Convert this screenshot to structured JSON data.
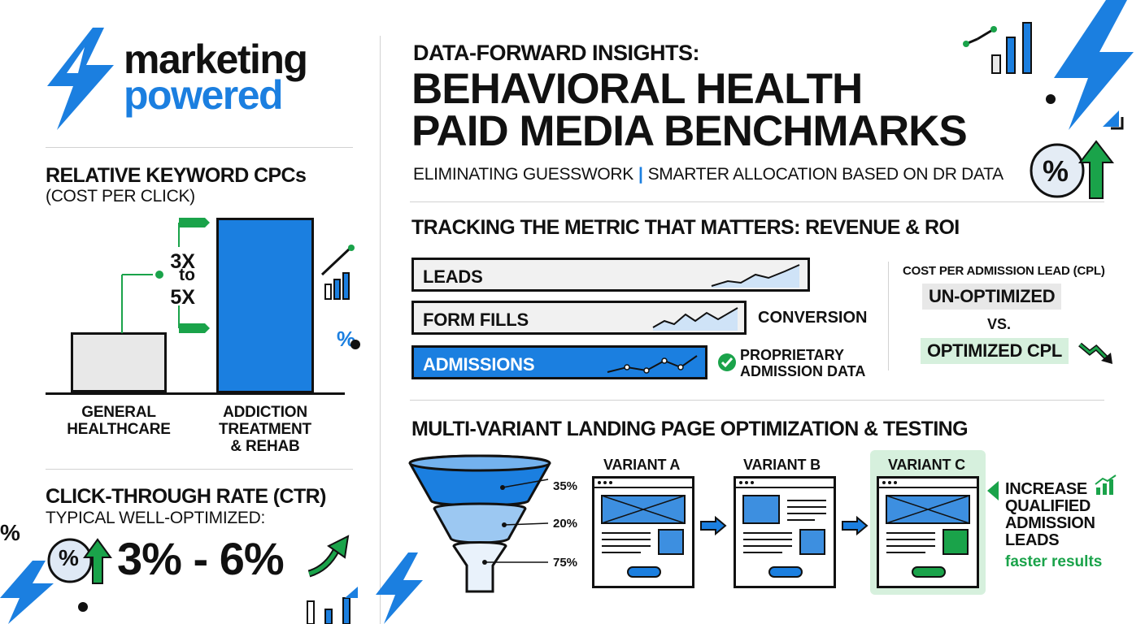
{
  "logo": {
    "line1": "marketing",
    "line2": "powered"
  },
  "header": {
    "kicker": "DATA-FORWARD INSIGHTS:",
    "title_line1": "BEHAVIORAL HEALTH",
    "title_line2": "PAID MEDIA BENCHMARKS",
    "subtitle_left": "ELIMINATING GUESSWORK",
    "subtitle_sep": "|",
    "subtitle_right": "SMARTER ALLOCATION BASED ON DR DATA",
    "percent_badge": "%"
  },
  "cpc": {
    "title": "RELATIVE KEYWORD CPCs",
    "subtitle": "(COST PER CLICK)",
    "multiplier_line1": "3X",
    "multiplier_line2": "to",
    "multiplier_line3": "5X",
    "percent_mark": "%",
    "chart_data": {
      "type": "bar",
      "categories": [
        "GENERAL HEALTHCARE",
        "ADDICTION TREATMENT & REHAB"
      ],
      "values": [
        1,
        3
      ],
      "label_general_line1": "GENERAL",
      "label_general_line2": "HEALTHCARE",
      "label_addiction_line1": "ADDICTION",
      "label_addiction_line2": "TREATMENT",
      "label_addiction_line3": "& REHAB"
    }
  },
  "ctr": {
    "title": "CLICK-THROUGH RATE (CTR)",
    "subtitle": "TYPICAL WELL-OPTIMIZED:",
    "range": "3% - 6%",
    "percent_badge": "%",
    "edge_percent": "%"
  },
  "tracking": {
    "title": "TRACKING THE METRIC THAT MATTERS: REVENUE & ROI",
    "stages": [
      {
        "label": "LEADS"
      },
      {
        "label": "FORM FILLS"
      },
      {
        "label": "ADMISSIONS"
      }
    ],
    "conversion_label": "CONVERSION",
    "proprietary_line1": "PROPRIETARY",
    "proprietary_line2": "ADMISSION DATA"
  },
  "cpl": {
    "title": "COST PER ADMISSION LEAD (CPL)",
    "unoptimized": "UN-OPTIMIZED",
    "vs": "VS.",
    "optimized": "OPTIMIZED CPL"
  },
  "testing": {
    "title": "MULTI-VARIANT LANDING PAGE OPTIMIZATION & TESTING",
    "funnel_pcts": [
      "35%",
      "20%",
      "75%"
    ],
    "variants": [
      "VARIANT A",
      "VARIANT B",
      "VARIANT C"
    ],
    "increase_line1": "INCREASE",
    "increase_line2": "QUALIFIED",
    "increase_line3": "ADMISSION",
    "increase_line4": "LEADS",
    "faster": "faster results"
  },
  "colors": {
    "brand_blue": "#1b7fe0",
    "light_blue": "#cfe3f7",
    "green": "#1aa34a",
    "light_green": "#d6f0dd",
    "gray_fill": "#e8e8e8"
  }
}
